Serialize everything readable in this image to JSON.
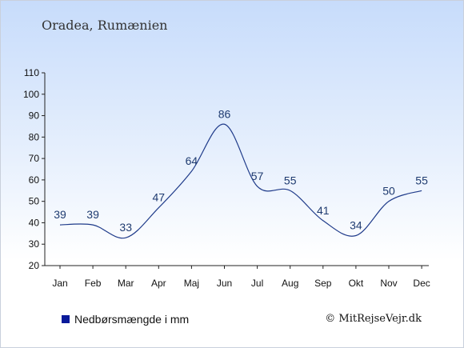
{
  "header": {
    "subtitle": "Oradea, Rumænien"
  },
  "legend": {
    "label": "Nedbørsmængde i mm",
    "swatch_color": "#0a1a9a"
  },
  "footer": {
    "credit": "© MitRejseVejr.dk"
  },
  "chart_data": {
    "type": "line",
    "categories": [
      "Jan",
      "Feb",
      "Mar",
      "Apr",
      "Maj",
      "Jun",
      "Jul",
      "Aug",
      "Sep",
      "Okt",
      "Nov",
      "Dec"
    ],
    "series": [
      {
        "values": [
          39,
          39,
          33,
          47,
          64,
          86,
          57,
          55,
          41,
          34,
          50,
          55
        ],
        "color": "#1f3b8a"
      }
    ],
    "data_labels": [
      "39",
      "39",
      "33",
      "47",
      "64",
      "86",
      "57",
      "55",
      "41",
      "34",
      "50",
      "55"
    ],
    "yticks": [
      20,
      30,
      40,
      50,
      60,
      70,
      80,
      90,
      100,
      110
    ],
    "ytick_labels": [
      "20",
      "30",
      "40",
      "50",
      "60",
      "70",
      "80",
      "90",
      "100",
      "110"
    ],
    "ylim": [
      20,
      110
    ],
    "grid": false,
    "legend_position": "bottom-left"
  }
}
